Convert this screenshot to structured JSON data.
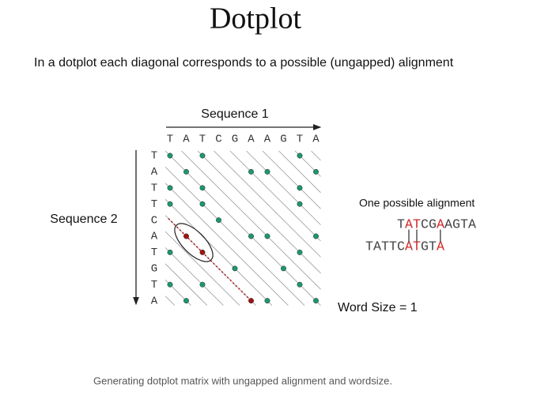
{
  "title": "Dotplot",
  "subtitle": "In a dotplot each diagonal corresponds to a possible (ungapped) alignment",
  "sequence1": {
    "label": "Sequence 1",
    "letters": [
      "T",
      "A",
      "T",
      "C",
      "G",
      "A",
      "A",
      "G",
      "T",
      "A"
    ]
  },
  "sequence2": {
    "label": "Sequence 2",
    "letters": [
      "T",
      "A",
      "T",
      "T",
      "C",
      "A",
      "T",
      "G",
      "T",
      "A"
    ]
  },
  "alignment": {
    "label": "One possible alignment",
    "top": [
      "T",
      "A",
      "T",
      "C",
      "G",
      "A",
      "A",
      "G",
      "T",
      "A"
    ],
    "bars": "||  |",
    "bottom": [
      "T",
      "A",
      "T",
      "T",
      "C",
      "A",
      "T",
      "G",
      "T",
      "A"
    ]
  },
  "word_size": "Word Size = 1",
  "caption": "Generating dotplot matrix with ungapped alignment and wordsize."
}
